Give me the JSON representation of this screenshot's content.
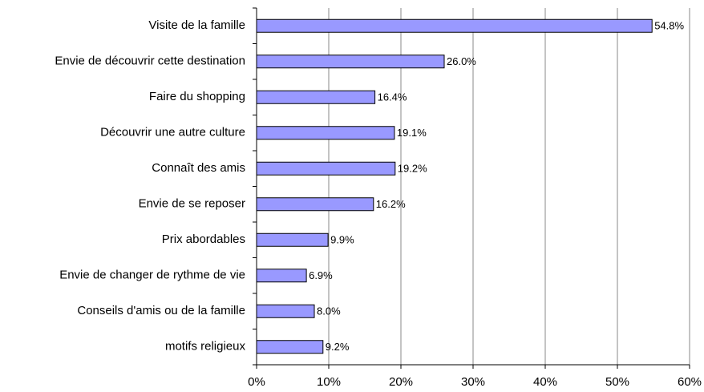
{
  "chart_data": {
    "type": "bar",
    "orientation": "horizontal",
    "categories": [
      "Visite de la famille",
      "Envie de découvrir cette destination",
      "Faire du shopping",
      "Découvrir une autre culture",
      "Connaît des amis",
      "Envie de se reposer",
      "Prix abordables",
      "Envie de changer de rythme de vie",
      "Conseils d'amis ou de la famille",
      "motifs religieux"
    ],
    "values": [
      54.8,
      26.0,
      16.4,
      19.1,
      19.2,
      16.2,
      9.9,
      6.9,
      8.0,
      9.2
    ],
    "value_labels": [
      "54.8%",
      "26.0%",
      "16.4%",
      "19.1%",
      "19.2%",
      "16.2%",
      "9.9%",
      "6.9%",
      "8.0%",
      "9.2%"
    ],
    "color": "#9999ff",
    "xlim": [
      0,
      60
    ],
    "xticks": [
      {
        "value": 0,
        "label": "0%"
      },
      {
        "value": 10,
        "label": "10%"
      },
      {
        "value": 20,
        "label": "20%"
      },
      {
        "value": 30,
        "label": "30%"
      },
      {
        "value": 40,
        "label": "40%"
      },
      {
        "value": 50,
        "label": "50%"
      },
      {
        "value": 60,
        "label": "60%"
      }
    ],
    "grid": true
  }
}
